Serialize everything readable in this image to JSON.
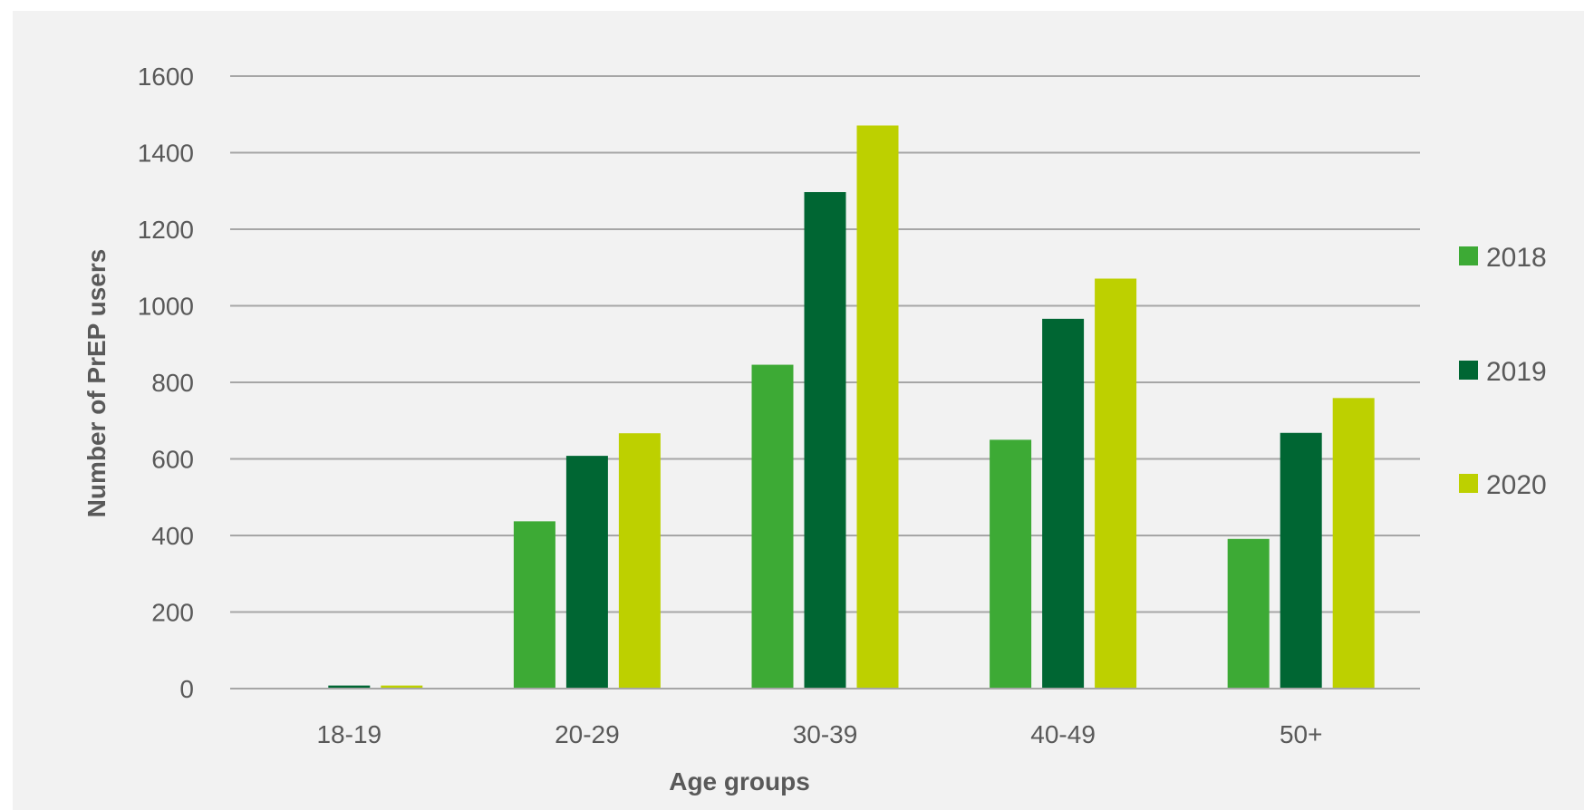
{
  "chart_data": {
    "type": "bar",
    "categories": [
      "18-19",
      "20-29",
      "30-39",
      "40-49",
      "50+"
    ],
    "series": [
      {
        "name": "2018",
        "color": "#3daa35",
        "values": [
          0,
          437,
          846,
          650,
          391
        ]
      },
      {
        "name": "2019",
        "color": "#006633",
        "values": [
          8,
          608,
          1297,
          966,
          668
        ]
      },
      {
        "name": "2020",
        "color": "#bdd000",
        "values": [
          8,
          667,
          1471,
          1071,
          759
        ]
      }
    ],
    "xlabel": "Age groups",
    "ylabel": "Number of PrEP users",
    "ylim": [
      0,
      1600
    ],
    "yticks": [
      "0",
      "200",
      "400",
      "600",
      "800",
      "1000",
      "1200",
      "1400",
      "1600"
    ],
    "ytick_values": [
      0,
      200,
      400,
      600,
      800,
      1000,
      1200,
      1400,
      1600
    ],
    "grid": "horizontal",
    "legend_position": "right"
  }
}
